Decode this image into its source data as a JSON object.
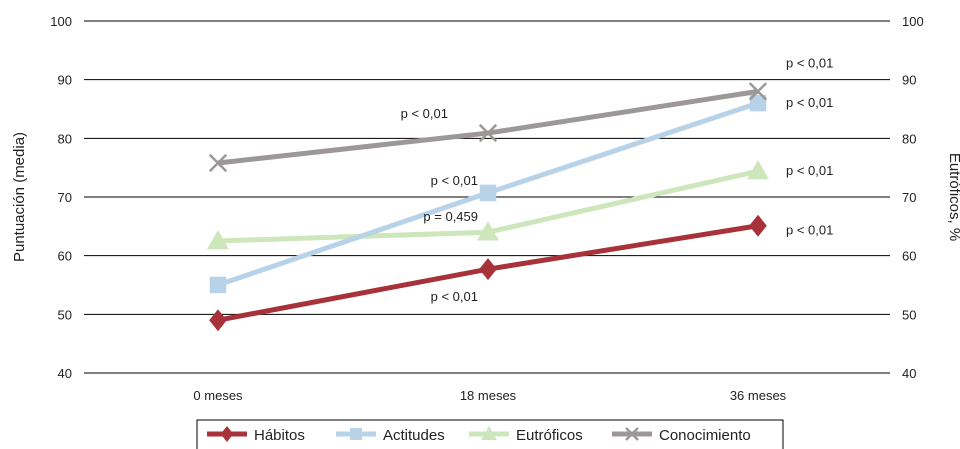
{
  "chart_data": {
    "type": "line",
    "categories": [
      "0 meses",
      "18 meses",
      "36 meses"
    ],
    "ylabel": "Puntuación (media)",
    "y2label": "Eutróficos, %",
    "ylim": [
      40,
      100
    ],
    "y2lim": [
      40,
      100
    ],
    "yticks": [
      40,
      50,
      60,
      70,
      80,
      90,
      100
    ],
    "grid": true,
    "legend_position": "bottom",
    "series": [
      {
        "name": "Hábitos",
        "color": "#a8323a",
        "marker": "diamond",
        "values": [
          49,
          57.7,
          65.1
        ]
      },
      {
        "name": "Actitudes",
        "color": "#b8d2e8",
        "marker": "square",
        "values": [
          55,
          70.7,
          86
        ]
      },
      {
        "name": "Eutróficos",
        "color": "#cde6bb",
        "marker": "triangle",
        "values": [
          62.5,
          64,
          74.4
        ]
      },
      {
        "name": "Conocimiento",
        "color": "#9c9898",
        "marker": "x",
        "values": [
          75.8,
          80.9,
          88
        ]
      }
    ],
    "annotations": [
      {
        "text": "p < 0,01",
        "series": "Conocimiento",
        "category": "18 meses"
      },
      {
        "text": "p < 0,01",
        "series": "Conocimiento",
        "category": "36 meses"
      },
      {
        "text": "p < 0,01",
        "series": "Actitudes",
        "category": "18 meses"
      },
      {
        "text": "p < 0,01",
        "series": "Actitudes",
        "category": "36 meses"
      },
      {
        "text": "p = 0,459",
        "series": "Eutróficos",
        "category": "18 meses"
      },
      {
        "text": "p < 0,01",
        "series": "Eutróficos",
        "category": "36 meses"
      },
      {
        "text": "p < 0,01",
        "series": "Hábitos",
        "category": "18 meses"
      },
      {
        "text": "p < 0,01",
        "series": "Hábitos",
        "category": "36 meses"
      }
    ]
  }
}
